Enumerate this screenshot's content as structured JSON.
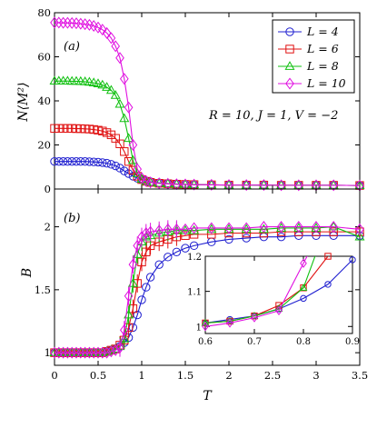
{
  "chart_data": [
    {
      "id": "panel-a",
      "type": "line",
      "panel_label": "(a)",
      "annotation": "R = 10, J = 1, V = −2",
      "xlabel": "",
      "ylabel": "N⟨M²⟩",
      "xlim": [
        0,
        3.5
      ],
      "ylim": [
        0,
        80
      ],
      "yticks": [
        0,
        20,
        40,
        60,
        80
      ],
      "legend_position": "top-right",
      "x": [
        0.0,
        0.05,
        0.1,
        0.15,
        0.2,
        0.25,
        0.3,
        0.35,
        0.4,
        0.45,
        0.5,
        0.55,
        0.6,
        0.65,
        0.7,
        0.75,
        0.8,
        0.85,
        0.9,
        0.95,
        1.0,
        1.05,
        1.1,
        1.2,
        1.3,
        1.4,
        1.5,
        1.6,
        1.8,
        2.0,
        2.2,
        2.4,
        2.6,
        2.8,
        3.0,
        3.2,
        3.5
      ],
      "series": [
        {
          "name": "L = 4",
          "color": "#1f1fd0",
          "marker": "circle",
          "values": [
            12.5,
            12.5,
            12.5,
            12.5,
            12.5,
            12.5,
            12.5,
            12.5,
            12.4,
            12.3,
            12.2,
            12.0,
            11.7,
            11.2,
            10.5,
            9.5,
            8.2,
            7.0,
            5.8,
            4.9,
            4.2,
            3.7,
            3.3,
            2.8,
            2.5,
            2.3,
            2.1,
            2.0,
            1.9,
            1.8,
            1.8,
            1.7,
            1.7,
            1.7,
            1.7,
            1.7,
            1.6
          ]
        },
        {
          "name": "L = 6",
          "color": "#e01010",
          "marker": "square",
          "values": [
            27.5,
            27.5,
            27.5,
            27.5,
            27.5,
            27.4,
            27.4,
            27.3,
            27.2,
            27.0,
            26.7,
            26.3,
            25.6,
            24.6,
            23.0,
            20.5,
            17.0,
            12.5,
            8.5,
            5.8,
            4.3,
            3.5,
            3.0,
            2.6,
            2.4,
            2.2,
            2.1,
            2.0,
            1.9,
            1.8,
            1.8,
            1.8,
            1.7,
            1.7,
            1.7,
            1.7,
            1.6
          ]
        },
        {
          "name": "L = 8",
          "color": "#10c010",
          "marker": "triangle",
          "values": [
            49.0,
            49.0,
            49.0,
            49.0,
            48.9,
            48.9,
            48.8,
            48.7,
            48.5,
            48.2,
            47.8,
            47.2,
            46.2,
            44.8,
            42.5,
            38.5,
            32.0,
            23.0,
            13.0,
            7.0,
            4.5,
            3.5,
            3.0,
            2.6,
            2.4,
            2.2,
            2.1,
            2.0,
            1.9,
            1.8,
            1.8,
            1.8,
            1.7,
            1.7,
            1.7,
            1.7,
            1.6
          ]
        },
        {
          "name": "L = 10",
          "color": "#e010e0",
          "marker": "diamond",
          "values": [
            75.5,
            75.5,
            75.4,
            75.4,
            75.3,
            75.2,
            75.0,
            74.8,
            74.5,
            74.0,
            73.3,
            72.3,
            70.8,
            68.5,
            64.8,
            59.5,
            50.0,
            37.0,
            20.0,
            9.0,
            5.0,
            3.6,
            3.0,
            2.6,
            2.4,
            2.2,
            2.1,
            2.0,
            1.9,
            1.8,
            1.8,
            1.8,
            1.7,
            1.7,
            1.7,
            1.7,
            1.6
          ]
        }
      ]
    },
    {
      "id": "panel-b",
      "type": "line",
      "panel_label": "(b)",
      "xlabel": "T",
      "ylabel": "B",
      "xlim": [
        0,
        3.5
      ],
      "ylim": [
        0.9,
        2.3
      ],
      "xticks": [
        0,
        0.5,
        1,
        1.5,
        2,
        2.5,
        3,
        3.5
      ],
      "yticks": [
        1,
        1.5,
        2
      ],
      "x": [
        0.0,
        0.05,
        0.1,
        0.15,
        0.2,
        0.25,
        0.3,
        0.35,
        0.4,
        0.45,
        0.5,
        0.55,
        0.6,
        0.65,
        0.7,
        0.75,
        0.8,
        0.85,
        0.9,
        0.95,
        1.0,
        1.05,
        1.1,
        1.2,
        1.3,
        1.4,
        1.5,
        1.6,
        1.8,
        2.0,
        2.2,
        2.4,
        2.6,
        2.8,
        3.0,
        3.2,
        3.5
      ],
      "series": [
        {
          "name": "L = 4",
          "color": "#1f1fd0",
          "marker": "circle",
          "values": [
            1.0,
            1.0,
            1.0,
            1.0,
            1.0,
            1.0,
            1.0,
            1.0,
            1.0,
            1.0,
            1.0,
            1.0,
            1.01,
            1.02,
            1.03,
            1.05,
            1.08,
            1.12,
            1.2,
            1.3,
            1.42,
            1.52,
            1.6,
            1.7,
            1.76,
            1.8,
            1.83,
            1.85,
            1.88,
            1.9,
            1.91,
            1.92,
            1.92,
            1.93,
            1.93,
            1.93,
            1.93
          ]
        },
        {
          "name": "L = 6",
          "color": "#e01010",
          "marker": "square",
          "values": [
            1.0,
            1.0,
            1.0,
            1.0,
            1.0,
            1.0,
            1.0,
            1.0,
            1.0,
            1.0,
            1.0,
            1.0,
            1.01,
            1.02,
            1.03,
            1.06,
            1.1,
            1.2,
            1.35,
            1.55,
            1.72,
            1.8,
            1.85,
            1.88,
            1.9,
            1.92,
            1.93,
            1.94,
            1.94,
            1.95,
            1.95,
            1.95,
            1.96,
            1.96,
            1.96,
            1.96,
            1.96
          ]
        },
        {
          "name": "L = 8",
          "color": "#10c010",
          "marker": "triangle",
          "values": [
            1.0,
            1.0,
            1.0,
            1.0,
            1.0,
            1.0,
            1.0,
            1.0,
            1.0,
            1.0,
            1.0,
            1.0,
            1.01,
            1.02,
            1.03,
            1.05,
            1.11,
            1.3,
            1.55,
            1.78,
            1.88,
            1.92,
            1.93,
            1.95,
            1.96,
            1.97,
            1.97,
            1.97,
            1.98,
            1.98,
            1.98,
            1.98,
            1.99,
            1.99,
            1.99,
            2.0,
            1.92
          ]
        },
        {
          "name": "L = 10",
          "color": "#e010e0",
          "marker": "diamond",
          "values": [
            1.0,
            1.0,
            1.0,
            1.0,
            1.0,
            1.0,
            1.0,
            1.0,
            1.0,
            1.0,
            1.0,
            1.0,
            1.0,
            1.01,
            1.02,
            1.04,
            1.18,
            1.45,
            1.7,
            1.85,
            1.92,
            1.95,
            1.96,
            1.97,
            1.98,
            1.98,
            1.98,
            1.99,
            1.99,
            1.99,
            1.99,
            2.0,
            2.0,
            2.0,
            2.0,
            2.0,
            1.98
          ]
        }
      ]
    },
    {
      "id": "inset",
      "type": "line",
      "xlim": [
        0.6,
        0.9
      ],
      "ylim": [
        0.98,
        1.2
      ],
      "xticks": [
        0.6,
        0.7,
        0.8,
        0.9
      ],
      "yticks": [
        1,
        1.1,
        1.2
      ],
      "x": [
        0.6,
        0.65,
        0.7,
        0.75,
        0.8,
        0.85,
        0.9
      ],
      "series": [
        {
          "name": "L = 4",
          "color": "#1f1fd0",
          "marker": "circle",
          "values": [
            1.01,
            1.02,
            1.03,
            1.05,
            1.08,
            1.12,
            1.19
          ]
        },
        {
          "name": "L = 6",
          "color": "#e01010",
          "marker": "square",
          "values": [
            1.01,
            1.015,
            1.03,
            1.06,
            1.11,
            1.2,
            null
          ]
        },
        {
          "name": "L = 8",
          "color": "#10c010",
          "marker": "triangle",
          "values": [
            1.01,
            1.015,
            1.03,
            1.05,
            1.11,
            1.3,
            null
          ]
        },
        {
          "name": "L = 10",
          "color": "#e010e0",
          "marker": "diamond",
          "values": [
            1.0,
            1.01,
            1.025,
            1.045,
            1.18,
            null,
            null
          ]
        }
      ]
    }
  ]
}
